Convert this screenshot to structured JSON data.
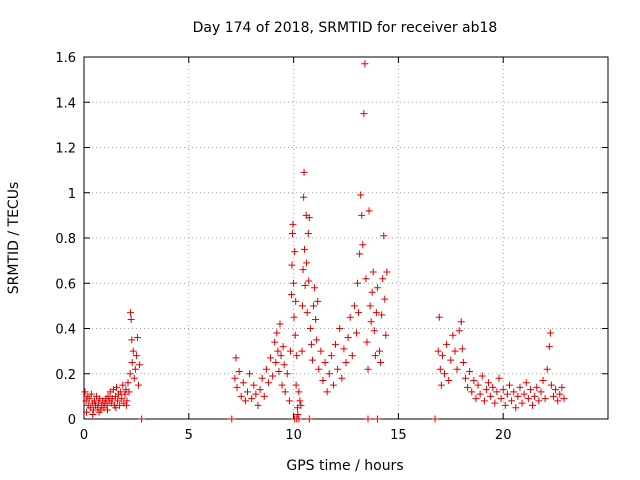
{
  "chart_data": {
    "type": "scatter",
    "title": "Day 174 of 2018, SRMTID for receiver ab18",
    "xlabel": "GPS time / hours",
    "ylabel": "SRMTID / TECUs",
    "xlim": [
      0,
      25
    ],
    "ylim": [
      0,
      1.6
    ],
    "xticks": [
      0,
      5,
      10,
      15,
      20
    ],
    "xtick_labels": [
      "0",
      "5",
      "10",
      "15",
      "20"
    ],
    "yticks": [
      0,
      0.2,
      0.4,
      0.6,
      0.8,
      1.0,
      1.2,
      1.4,
      1.6
    ],
    "ytick_labels": [
      "0",
      "0.2",
      "0.4",
      "0.6",
      "0.8",
      "1",
      "1.2",
      "1.4",
      "1.6"
    ],
    "grid": true,
    "marker": "+",
    "marker_color": "#e00000",
    "series": [
      {
        "name": "SRMTID",
        "points": [
          [
            0.05,
            0.12
          ],
          [
            0.1,
            0.08
          ],
          [
            0.15,
            0.1
          ],
          [
            0.2,
            0.06
          ],
          [
            0.25,
            0.09
          ],
          [
            0.3,
            0.05
          ],
          [
            0.35,
            0.11
          ],
          [
            0.4,
            0.07
          ],
          [
            0.45,
            0.04
          ],
          [
            0.5,
            0.08
          ],
          [
            0.55,
            0.06
          ],
          [
            0.6,
            0.1
          ],
          [
            0.65,
            0.05
          ],
          [
            0.7,
            0.07
          ],
          [
            0.75,
            0.09
          ],
          [
            0.8,
            0.04
          ],
          [
            0.85,
            0.06
          ],
          [
            0.9,
            0.08
          ],
          [
            0.95,
            0.05
          ],
          [
            1.0,
            0.07
          ],
          [
            1.05,
            0.09
          ],
          [
            1.1,
            0.06
          ],
          [
            1.15,
            0.1
          ],
          [
            1.2,
            0.08
          ],
          [
            1.25,
            0.12
          ],
          [
            1.3,
            0.07
          ],
          [
            1.35,
            0.09
          ],
          [
            1.4,
            0.13
          ],
          [
            1.45,
            0.06
          ],
          [
            1.5,
            0.1
          ],
          [
            1.55,
            0.14
          ],
          [
            1.6,
            0.08
          ],
          [
            1.65,
            0.11
          ],
          [
            1.7,
            0.06
          ],
          [
            1.75,
            0.12
          ],
          [
            1.8,
            0.09
          ],
          [
            1.85,
            0.15
          ],
          [
            1.9,
            0.07
          ],
          [
            1.95,
            0.11
          ],
          [
            2.0,
            0.13
          ],
          [
            2.05,
            0.08
          ],
          [
            2.1,
            0.16
          ],
          [
            2.15,
            0.12
          ],
          [
            2.2,
            0.2
          ],
          [
            2.22,
            0.47
          ],
          [
            2.25,
            0.44
          ],
          [
            2.28,
            0.35
          ],
          [
            2.3,
            0.25
          ],
          [
            2.35,
            0.3
          ],
          [
            2.4,
            0.18
          ],
          [
            2.45,
            0.22
          ],
          [
            2.5,
            0.28
          ],
          [
            2.55,
            0.36
          ],
          [
            2.6,
            0.15
          ],
          [
            2.65,
            0.24
          ],
          [
            0.12,
            0.03
          ],
          [
            0.42,
            0.02
          ],
          [
            0.72,
            0.03
          ],
          [
            1.12,
            0.04
          ],
          [
            1.52,
            0.05
          ],
          [
            2.02,
            0.06
          ],
          [
            2.75,
            0.0
          ],
          [
            7.05,
            0.0
          ],
          [
            7.2,
            0.18
          ],
          [
            7.25,
            0.27
          ],
          [
            7.3,
            0.14
          ],
          [
            7.4,
            0.21
          ],
          [
            7.5,
            0.1
          ],
          [
            7.6,
            0.16
          ],
          [
            7.7,
            0.08
          ],
          [
            7.8,
            0.12
          ],
          [
            7.9,
            0.2
          ],
          [
            8.0,
            0.09
          ],
          [
            8.1,
            0.15
          ],
          [
            8.2,
            0.11
          ],
          [
            8.3,
            0.06
          ],
          [
            8.4,
            0.13
          ],
          [
            8.5,
            0.18
          ],
          [
            8.6,
            0.1
          ],
          [
            8.7,
            0.22
          ],
          [
            8.8,
            0.16
          ],
          [
            8.9,
            0.27
          ],
          [
            9.0,
            0.19
          ],
          [
            9.1,
            0.34
          ],
          [
            9.15,
            0.25
          ],
          [
            9.2,
            0.38
          ],
          [
            9.25,
            0.3
          ],
          [
            9.3,
            0.21
          ],
          [
            9.35,
            0.42
          ],
          [
            9.4,
            0.28
          ],
          [
            9.45,
            0.15
          ],
          [
            9.5,
            0.32
          ],
          [
            9.55,
            0.24
          ],
          [
            9.6,
            0.12
          ],
          [
            9.7,
            0.2
          ],
          [
            9.8,
            0.08
          ],
          [
            9.85,
            0.3
          ],
          [
            9.9,
            0.55
          ],
          [
            9.92,
            0.68
          ],
          [
            9.95,
            0.82
          ],
          [
            9.97,
            0.86
          ],
          [
            10.0,
            0.6
          ],
          [
            10.02,
            0.45
          ],
          [
            10.05,
            0.74
          ],
          [
            10.08,
            0.37
          ],
          [
            10.1,
            0.52
          ],
          [
            10.12,
            0.15
          ],
          [
            10.15,
            0.28
          ],
          [
            10.18,
            0.05
          ],
          [
            10.2,
            0.02
          ],
          [
            10.25,
            0.12
          ],
          [
            10.3,
            0.08
          ],
          [
            10.35,
            0.06
          ],
          [
            10.4,
            0.3
          ],
          [
            10.42,
            0.5
          ],
          [
            10.45,
            0.66
          ],
          [
            10.48,
            0.98
          ],
          [
            10.5,
            1.09
          ],
          [
            10.52,
            0.75
          ],
          [
            10.55,
            0.59
          ],
          [
            10.6,
            0.9
          ],
          [
            10.62,
            0.69
          ],
          [
            10.65,
            0.47
          ],
          [
            10.7,
            0.82
          ],
          [
            10.72,
            0.61
          ],
          [
            10.75,
            0.89
          ],
          [
            10.8,
            0.4
          ],
          [
            10.85,
            0.33
          ],
          [
            10.9,
            0.26
          ],
          [
            10.95,
            0.5
          ],
          [
            11.0,
            0.58
          ],
          [
            11.05,
            0.44
          ],
          [
            11.1,
            0.35
          ],
          [
            11.15,
            0.52
          ],
          [
            11.2,
            0.22
          ],
          [
            11.3,
            0.3
          ],
          [
            11.4,
            0.17
          ],
          [
            11.5,
            0.25
          ],
          [
            11.6,
            0.12
          ],
          [
            11.7,
            0.2
          ],
          [
            11.8,
            0.28
          ],
          [
            11.9,
            0.15
          ],
          [
            12.0,
            0.33
          ],
          [
            12.1,
            0.22
          ],
          [
            12.2,
            0.4
          ],
          [
            12.3,
            0.18
          ],
          [
            12.4,
            0.31
          ],
          [
            12.5,
            0.25
          ],
          [
            12.6,
            0.36
          ],
          [
            12.7,
            0.45
          ],
          [
            12.8,
            0.28
          ],
          [
            12.9,
            0.5
          ],
          [
            13.0,
            0.38
          ],
          [
            13.05,
            0.6
          ],
          [
            13.1,
            0.47
          ],
          [
            13.15,
            0.73
          ],
          [
            13.2,
            0.99
          ],
          [
            13.25,
            0.9
          ],
          [
            13.3,
            0.77
          ],
          [
            13.35,
            1.35
          ],
          [
            13.4,
            1.57
          ],
          [
            13.45,
            0.62
          ],
          [
            13.5,
            0.34
          ],
          [
            13.55,
            0.22
          ],
          [
            13.6,
            0.92
          ],
          [
            13.65,
            0.5
          ],
          [
            13.7,
            0.43
          ],
          [
            13.75,
            0.56
          ],
          [
            13.8,
            0.65
          ],
          [
            13.85,
            0.39
          ],
          [
            13.9,
            0.28
          ],
          [
            13.95,
            0.47
          ],
          [
            14.0,
            0.58
          ],
          [
            14.1,
            0.3
          ],
          [
            14.15,
            0.25
          ],
          [
            14.2,
            0.46
          ],
          [
            14.25,
            0.62
          ],
          [
            14.3,
            0.81
          ],
          [
            14.35,
            0.53
          ],
          [
            14.4,
            0.37
          ],
          [
            14.45,
            0.65
          ],
          [
            10.05,
            0.0
          ],
          [
            10.15,
            0.0
          ],
          [
            10.25,
            0.0
          ],
          [
            10.75,
            0.0
          ],
          [
            13.55,
            0.0
          ],
          [
            14.0,
            0.0
          ],
          [
            16.75,
            0.0
          ],
          [
            16.9,
            0.3
          ],
          [
            16.95,
            0.45
          ],
          [
            17.0,
            0.22
          ],
          [
            17.05,
            0.15
          ],
          [
            17.1,
            0.28
          ],
          [
            17.2,
            0.2
          ],
          [
            17.3,
            0.33
          ],
          [
            17.4,
            0.17
          ],
          [
            17.5,
            0.26
          ],
          [
            17.6,
            0.37
          ],
          [
            17.7,
            0.3
          ],
          [
            17.8,
            0.22
          ],
          [
            17.9,
            0.39
          ],
          [
            18.0,
            0.43
          ],
          [
            18.05,
            0.31
          ],
          [
            18.1,
            0.25
          ],
          [
            18.2,
            0.18
          ],
          [
            18.3,
            0.14
          ],
          [
            18.4,
            0.21
          ],
          [
            18.5,
            0.12
          ],
          [
            18.6,
            0.17
          ],
          [
            18.7,
            0.09
          ],
          [
            18.8,
            0.15
          ],
          [
            18.9,
            0.11
          ],
          [
            19.0,
            0.19
          ],
          [
            19.1,
            0.08
          ],
          [
            19.2,
            0.13
          ],
          [
            19.3,
            0.16
          ],
          [
            19.4,
            0.1
          ],
          [
            19.5,
            0.14
          ],
          [
            19.6,
            0.07
          ],
          [
            19.7,
            0.12
          ],
          [
            19.8,
            0.18
          ],
          [
            19.9,
            0.09
          ],
          [
            20.0,
            0.13
          ],
          [
            20.1,
            0.06
          ],
          [
            20.2,
            0.11
          ],
          [
            20.3,
            0.15
          ],
          [
            20.4,
            0.08
          ],
          [
            20.5,
            0.12
          ],
          [
            20.6,
            0.05
          ],
          [
            20.7,
            0.1
          ],
          [
            20.8,
            0.14
          ],
          [
            20.9,
            0.07
          ],
          [
            21.0,
            0.11
          ],
          [
            21.1,
            0.16
          ],
          [
            21.2,
            0.09
          ],
          [
            21.3,
            0.13
          ],
          [
            21.4,
            0.06
          ],
          [
            21.5,
            0.1
          ],
          [
            21.6,
            0.14
          ],
          [
            21.7,
            0.08
          ],
          [
            21.8,
            0.12
          ],
          [
            21.9,
            0.17
          ],
          [
            22.0,
            0.09
          ],
          [
            22.1,
            0.22
          ],
          [
            22.2,
            0.32
          ],
          [
            22.25,
            0.38
          ],
          [
            22.3,
            0.15
          ],
          [
            22.4,
            0.1
          ],
          [
            22.5,
            0.13
          ],
          [
            22.6,
            0.08
          ],
          [
            22.7,
            0.11
          ],
          [
            22.8,
            0.14
          ],
          [
            22.9,
            0.09
          ]
        ]
      }
    ]
  }
}
